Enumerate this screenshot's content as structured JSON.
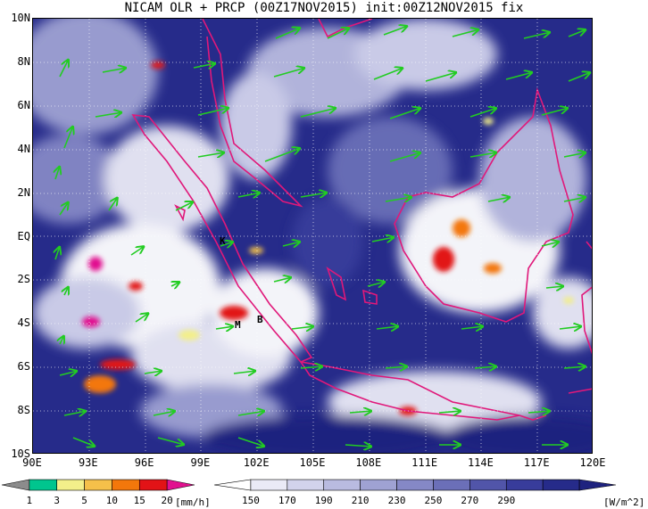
{
  "title": "NICAM OLR + PRCP (00Z17NOV2015) init:00Z12NOV2015 fix",
  "lat_labels": [
    "10N",
    "8N",
    "6N",
    "4N",
    "2N",
    "EQ",
    "2S",
    "4S",
    "6S",
    "8S",
    "10S"
  ],
  "lon_labels": [
    "90E",
    "93E",
    "96E",
    "99E",
    "102E",
    "105E",
    "108E",
    "111E",
    "114E",
    "117E",
    "120E"
  ],
  "station_labels": {
    "k": "K",
    "m": "M",
    "b": "B"
  },
  "precip_colorbar": {
    "ticks": [
      "1",
      "3",
      "5",
      "10",
      "15",
      "20"
    ],
    "unit": "[mm/h]",
    "colors": [
      "#8c8c8c",
      "#00c58e",
      "#f3ef8a",
      "#f5c04a",
      "#f3770b",
      "#e21317",
      "#e1118f"
    ]
  },
  "olr_colorbar": {
    "ticks": [
      "150",
      "170",
      "190",
      "210",
      "230",
      "250",
      "270",
      "290"
    ],
    "unit": "[W/m^2]",
    "colors": [
      "#ffffff",
      "#eaeaf6",
      "#d2d3ec",
      "#b9bbe0",
      "#9fa2d3",
      "#8588c6",
      "#6b6fb8",
      "#5155a9",
      "#383c9b",
      "#262b8a",
      "#1f237f"
    ]
  },
  "colors": {
    "coastline": "#e0187a",
    "wind_arrow": "#22cc22",
    "grid": "#ffffff"
  }
}
